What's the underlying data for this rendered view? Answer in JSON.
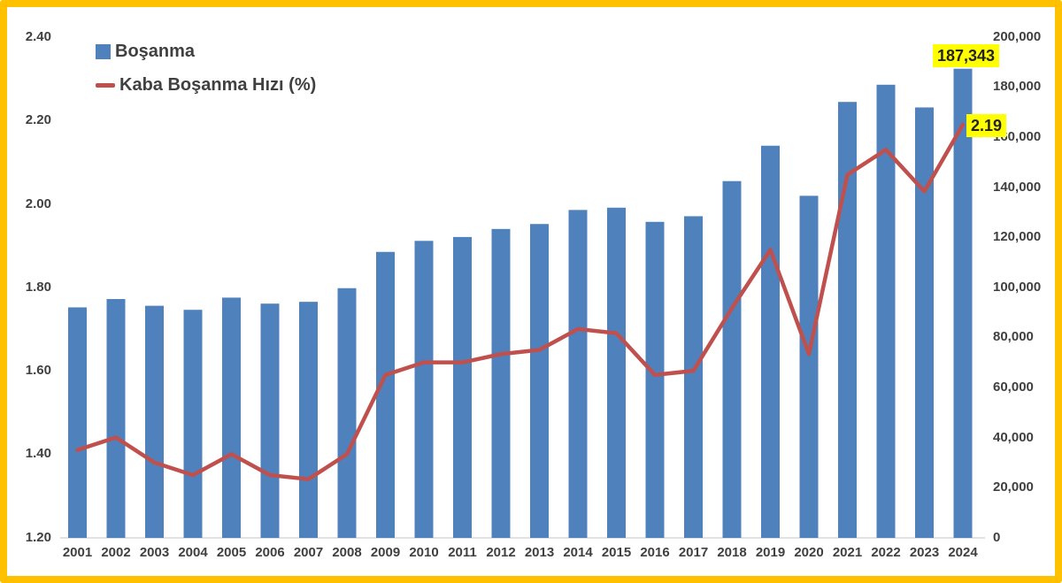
{
  "theme": {
    "bar_color": "#4F81BD",
    "line_color": "#C0504D",
    "border_color": "#FFC000",
    "highlight_color": "#FFFF00",
    "text_color": "#404040",
    "axis_line_color": "#D9D9D9",
    "background": "#FFFFFF"
  },
  "chart_data": {
    "type": "combo-bar-line",
    "title": "",
    "grid": false,
    "legend_position": "top-left",
    "categories": [
      "2001",
      "2002",
      "2003",
      "2004",
      "2005",
      "2006",
      "2007",
      "2008",
      "2009",
      "2010",
      "2011",
      "2012",
      "2013",
      "2014",
      "2015",
      "2016",
      "2017",
      "2018",
      "2019",
      "2020",
      "2021",
      "2022",
      "2023",
      "2024"
    ],
    "series": [
      {
        "name": "Boşanma",
        "type": "bar",
        "axis": "right",
        "color": "#4F81BD",
        "values": [
          91994,
          95323,
          92637,
          91022,
          95895,
          93489,
          94219,
          99663,
          114162,
          118568,
          120117,
          123325,
          125305,
          130913,
          131830,
          126164,
          128411,
          142448,
          156587,
          136570,
          174085,
          180954,
          171881,
          187343
        ]
      },
      {
        "name": "Kaba Boşanma Hızı (%)",
        "type": "line",
        "axis": "left",
        "color": "#C0504D",
        "values": [
          1.41,
          1.44,
          1.38,
          1.35,
          1.4,
          1.35,
          1.34,
          1.4,
          1.59,
          1.62,
          1.62,
          1.64,
          1.65,
          1.7,
          1.69,
          1.59,
          1.6,
          1.75,
          1.89,
          1.64,
          2.07,
          2.13,
          2.03,
          2.19
        ]
      }
    ],
    "left_axis": {
      "range": [
        1.2,
        2.4
      ],
      "tick_values": [
        1.2,
        1.4,
        1.6,
        1.8,
        2.0,
        2.2,
        2.4
      ],
      "tick_labels": [
        "1.20",
        "1.40",
        "1.60",
        "1.80",
        "2.00",
        "2.20",
        "2.40"
      ]
    },
    "right_axis": {
      "range": [
        0,
        200000
      ],
      "tick_values": [
        0,
        20000,
        40000,
        60000,
        80000,
        100000,
        120000,
        140000,
        160000,
        180000,
        200000
      ],
      "tick_labels": [
        "0",
        "20,000",
        "40,000",
        "60,000",
        "80,000",
        "100,000",
        "120,000",
        "140,000",
        "160,000",
        "180,000",
        "200,000"
      ]
    },
    "annotations": [
      {
        "target": "bar",
        "year": "2024",
        "label": "187,343"
      },
      {
        "target": "line",
        "year": "2024",
        "label": "2.19"
      }
    ]
  }
}
